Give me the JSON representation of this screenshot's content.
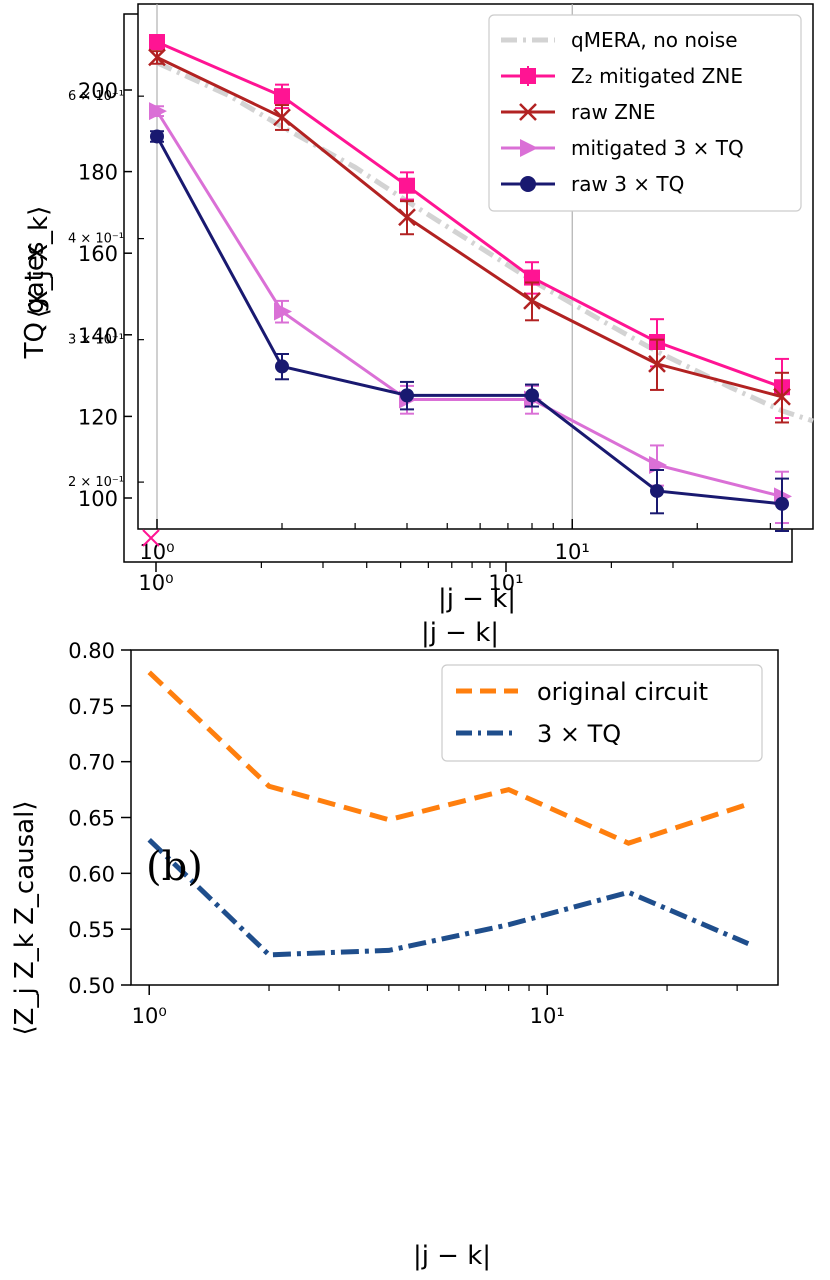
{
  "chart_data": [
    {
      "type": "line",
      "panel": "top",
      "xscale": "log",
      "xlim": [
        0.9,
        38
      ],
      "ylim": [
        0.175,
        0.78
      ],
      "yscale": "log",
      "xlabel": "|j − k|",
      "ylabel": "⟨X_j X_k⟩",
      "x_ticks": [
        "10⁰",
        "10¹"
      ],
      "y_ticks": [
        "6 × 10⁻¹",
        "4 × 10⁻¹",
        "3 × 10⁻¹",
        "2 × 10⁻¹"
      ],
      "x": [
        1,
        2,
        4,
        8,
        16,
        32
      ],
      "series": [
        {
          "name": "qMERA, no noise",
          "color": "#d3d3d3",
          "style": "dashdot",
          "x": [
            1,
            1.5,
            2,
            3,
            4,
            6,
            8,
            12,
            16,
            24,
            32,
            38
          ],
          "values": [
            0.66,
            0.6,
            0.55,
            0.49,
            0.445,
            0.39,
            0.355,
            0.315,
            0.29,
            0.262,
            0.245,
            0.238
          ]
        },
        {
          "name": "Z₂ mitigated ZNE",
          "color": "#ff1493",
          "marker": "square",
          "values": [
            0.7,
            0.6,
            0.465,
            0.358,
            0.298,
            0.262
          ],
          "errors": [
            0.012,
            0.02,
            0.018,
            0.016,
            0.02,
            0.022
          ]
        },
        {
          "name": "raw ZNE",
          "color": "#b22222",
          "marker": "x",
          "values": [
            0.67,
            0.565,
            0.425,
            0.335,
            0.28,
            0.255
          ],
          "errors": [
            0.012,
            0.02,
            0.02,
            0.018,
            0.02,
            0.018
          ]
        },
        {
          "name": "mitigated 3 × TQ",
          "color": "#da70d6",
          "marker": "triangle-right",
          "values": [
            0.575,
            0.325,
            0.253,
            0.253,
            0.21,
            0.192
          ],
          "errors": [
            0.008,
            0.01,
            0.01,
            0.01,
            0.012,
            0.014
          ]
        },
        {
          "name": "raw 3 × TQ",
          "color": "#191970",
          "marker": "circle",
          "values": [
            0.535,
            0.278,
            0.256,
            0.256,
            0.195,
            0.188
          ],
          "errors": [
            0.008,
            0.01,
            0.01,
            0.008,
            0.012,
            0.014
          ]
        }
      ],
      "overlay_axis": {
        "ylabel": "TQ gates",
        "xlabel": "|j − k|",
        "y_ticks": [
          "200",
          "180",
          "160",
          "140",
          "120",
          "100"
        ],
        "x_ticks": [
          "10⁰",
          "10¹"
        ]
      }
    },
    {
      "type": "line",
      "panel": "bottom",
      "panel_label": "(b)",
      "xscale": "log",
      "xlim": [
        0.9,
        38
      ],
      "ylim": [
        0.5,
        0.8
      ],
      "xlabel": "|j − k|",
      "ylabel": "⟨Z_j Z_k Z_causal⟩",
      "x_ticks": [
        "10⁰",
        "10¹"
      ],
      "y_ticks": [
        "0.80",
        "0.75",
        "0.70",
        "0.65",
        "0.60",
        "0.55",
        "0.50"
      ],
      "x": [
        1,
        2,
        4,
        8,
        16,
        32
      ],
      "series": [
        {
          "name": "original circuit",
          "color": "#ff7f0e",
          "style": "dashed",
          "values": [
            0.78,
            0.678,
            0.648,
            0.675,
            0.627,
            0.662
          ]
        },
        {
          "name": "3 × TQ",
          "color": "#1f4e8c",
          "style": "dashdot",
          "values": [
            0.63,
            0.527,
            0.531,
            0.554,
            0.583,
            0.537
          ]
        }
      ]
    }
  ]
}
